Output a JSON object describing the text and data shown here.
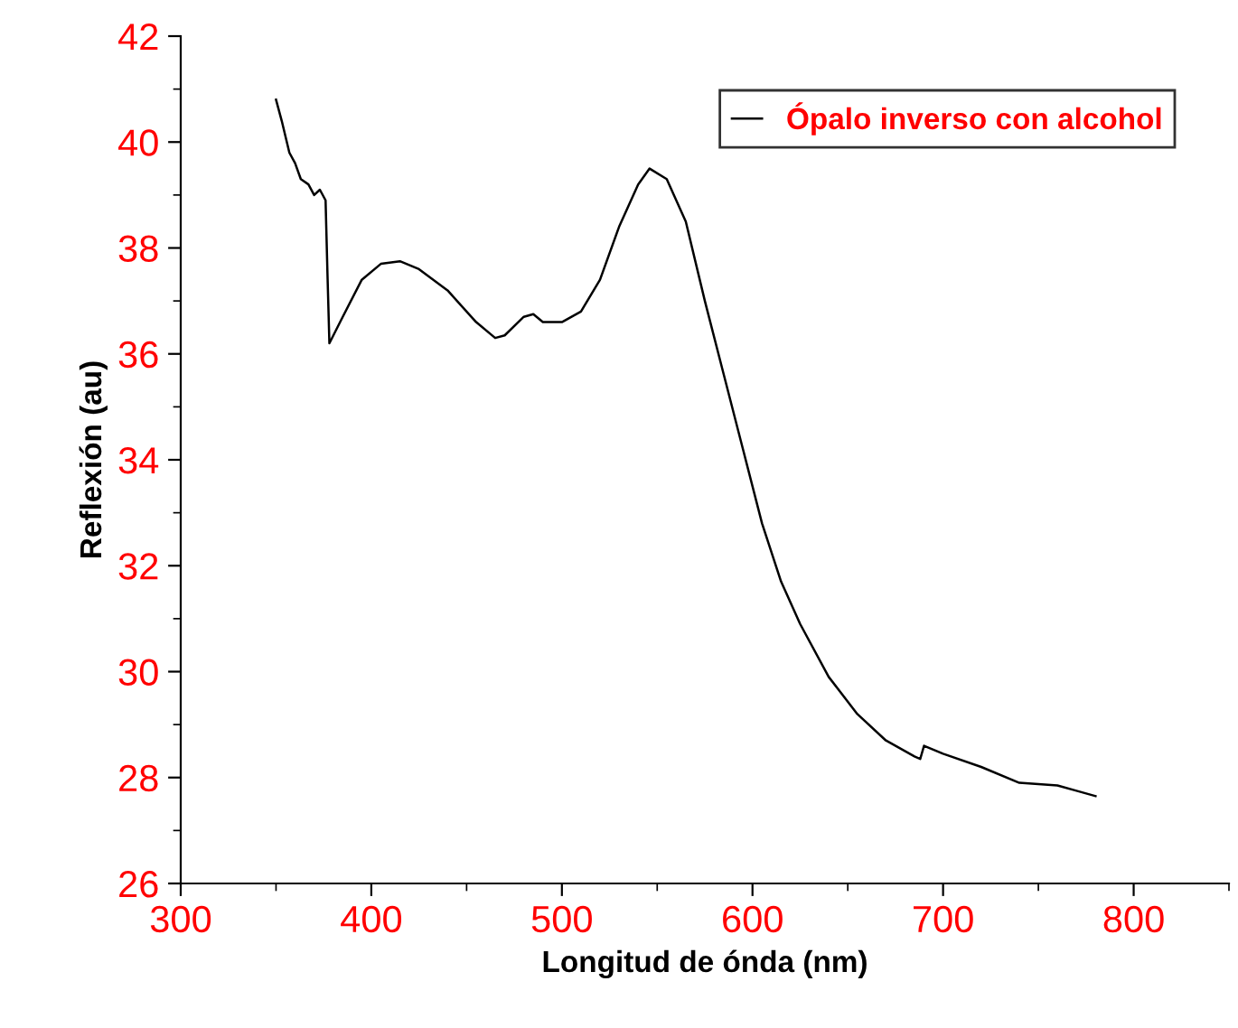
{
  "chart_data": {
    "type": "line",
    "xlabel": "Longitud de ónda (nm)",
    "ylabel": "Reflexión (au)",
    "xlim": [
      300,
      850
    ],
    "ylim": [
      26,
      42
    ],
    "xticks": [
      300,
      400,
      500,
      600,
      700,
      800
    ],
    "yticks": [
      26,
      28,
      30,
      32,
      34,
      36,
      38,
      40,
      42
    ],
    "grid": false,
    "legend": "top right",
    "marker": "none",
    "line_style": "solid",
    "series": [
      {
        "name": "Ópalo inverso con alcohol",
        "color": "#000000",
        "x": [
          350,
          353,
          357,
          360,
          363,
          367,
          370,
          373,
          376,
          377,
          378,
          385,
          395,
          405,
          415,
          425,
          440,
          455,
          465,
          470,
          480,
          485,
          490,
          500,
          510,
          520,
          530,
          540,
          546,
          555,
          565,
          575,
          585,
          595,
          605,
          615,
          625,
          640,
          655,
          670,
          685,
          688,
          690,
          700,
          720,
          740,
          760,
          770,
          780
        ],
        "values": [
          40.8,
          40.4,
          39.8,
          39.6,
          39.3,
          39.2,
          39.0,
          39.1,
          38.9,
          37.5,
          36.2,
          36.7,
          37.4,
          37.7,
          37.75,
          37.6,
          37.2,
          36.6,
          36.3,
          36.35,
          36.7,
          36.75,
          36.6,
          36.6,
          36.8,
          37.4,
          38.4,
          39.2,
          39.5,
          39.3,
          38.5,
          37.0,
          35.6,
          34.2,
          32.8,
          31.7,
          30.9,
          29.9,
          29.2,
          28.7,
          28.4,
          28.35,
          28.6,
          28.45,
          28.2,
          27.9,
          27.85,
          27.75,
          27.65
        ]
      }
    ]
  }
}
